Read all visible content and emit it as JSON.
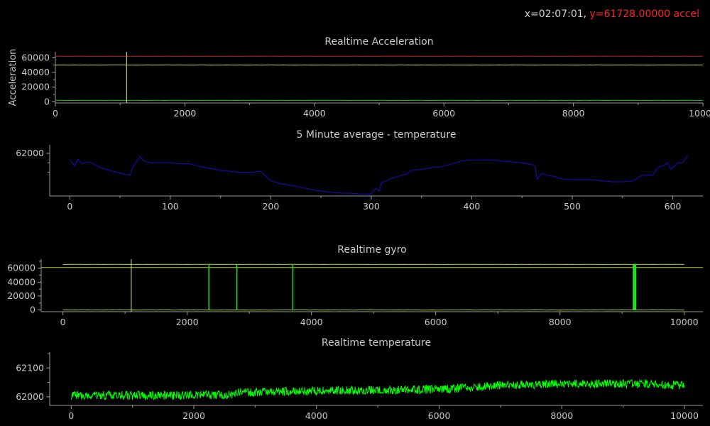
{
  "readout": {
    "x_text": "x=02:07:01,",
    "y_text": "y=61728.00000 accel"
  },
  "colors": {
    "background": "#000000",
    "axis": "#9a9a9a",
    "text": "#c8c8c8",
    "readout_y": "#ff2020"
  },
  "chart_data": [
    {
      "type": "line",
      "title": "Realtime Acceleration",
      "ylabel": "Acceleration",
      "xlim": [
        0,
        10000
      ],
      "ylim": [
        -1500,
        68000
      ],
      "x_ticks": [
        0,
        2000,
        4000,
        6000,
        8000,
        10000
      ],
      "y_ticks": [
        0,
        20000,
        40000,
        60000
      ],
      "cursor_x": 1100,
      "series": [
        {
          "color": "#c81e1e",
          "x": [
            0,
            10000
          ],
          "y": [
            62000,
            62000
          ]
        },
        {
          "color": "#d2d23c",
          "x": [
            0,
            10000
          ],
          "y": [
            50000,
            50000
          ]
        },
        {
          "color": "#20c020",
          "x": [
            0,
            10000
          ],
          "y": [
            2000,
            2000
          ]
        }
      ]
    },
    {
      "type": "line",
      "title": "5 Minute average - temperature",
      "xlim": [
        -20,
        630
      ],
      "ylim": [
        61955,
        62009
      ],
      "x_ticks": [
        0,
        100,
        200,
        300,
        400,
        500,
        600
      ],
      "y_ticks": [
        62000
      ],
      "series": [
        {
          "color": "#1010c8",
          "x": [
            0,
            5,
            8,
            12,
            15,
            20,
            25,
            30,
            40,
            50,
            60,
            62,
            65,
            70,
            73,
            80,
            90,
            100,
            110,
            120,
            130,
            140,
            150,
            160,
            170,
            180,
            190,
            200,
            210,
            220,
            230,
            240,
            250,
            260,
            270,
            280,
            290,
            300,
            302,
            305,
            308,
            310,
            315,
            320,
            325,
            330,
            335,
            340,
            350,
            360,
            370,
            380,
            390,
            400,
            410,
            420,
            430,
            440,
            450,
            460,
            463,
            465,
            468,
            470,
            475,
            480,
            490,
            500,
            510,
            520,
            530,
            540,
            550,
            560,
            570,
            580,
            585,
            590,
            595,
            598,
            600,
            605,
            610,
            615
          ],
          "y": [
            61993,
            61987,
            61994,
            61989,
            61990,
            61991,
            61988,
            61985,
            61982,
            61979,
            61977,
            61984,
            61989,
            61997,
            61992,
            61990,
            61990,
            61990,
            61989,
            61989,
            61986,
            61984,
            61982,
            61981,
            61980,
            61980,
            61981,
            61971,
            61968,
            61966,
            61964,
            61962,
            61960,
            61959,
            61958,
            61958,
            61957,
            61957,
            61961,
            61963,
            61960,
            61969,
            61971,
            61974,
            61975,
            61977,
            61978,
            61982,
            61983,
            61985,
            61986,
            61989,
            61992,
            61993,
            61993,
            61993,
            61992,
            61991,
            61990,
            61988,
            61986,
            61973,
            61977,
            61979,
            61977,
            61976,
            61973,
            61972,
            61972,
            61972,
            61971,
            61970,
            61970,
            61971,
            61977,
            61977,
            61985,
            61987,
            61990,
            61983,
            61985,
            61990,
            61990,
            61998
          ]
        }
      ]
    },
    {
      "type": "line",
      "title": "Realtime gyro",
      "xlim": [
        -350,
        10300
      ],
      "ylim": [
        -2500,
        73000
      ],
      "x_ticks": [
        0,
        2000,
        4000,
        6000,
        8000,
        10000
      ],
      "y_ticks": [
        0,
        20000,
        40000,
        60000
      ],
      "cursor_x": 1100,
      "spikes_x": [
        2350,
        2800,
        3700,
        9180,
        9190,
        9200,
        9210,
        9220
      ],
      "series": [
        {
          "color": "#a8d830",
          "x": [
            0,
            10000
          ],
          "y": [
            65535,
            65535
          ]
        },
        {
          "color": "#a8d830",
          "x": [
            0,
            10000
          ],
          "y": [
            0,
            0
          ]
        }
      ]
    },
    {
      "type": "line",
      "title": "Realtime temperature",
      "xlim": [
        -350,
        10300
      ],
      "ylim": [
        61970,
        62155
      ],
      "x_ticks": [
        0,
        2000,
        4000,
        6000,
        8000,
        10000
      ],
      "y_ticks": [
        62000,
        62100
      ],
      "series": [
        {
          "color": "#00ff00",
          "trend_x": [
            0,
            2000,
            2600,
            2700,
            3500,
            4500,
            6000,
            6500,
            7000,
            8000,
            9000,
            10000
          ],
          "trend_y": [
            62005,
            62005,
            62008,
            62015,
            62018,
            62022,
            62026,
            62032,
            62040,
            62045,
            62045,
            62040
          ]
        }
      ]
    }
  ]
}
